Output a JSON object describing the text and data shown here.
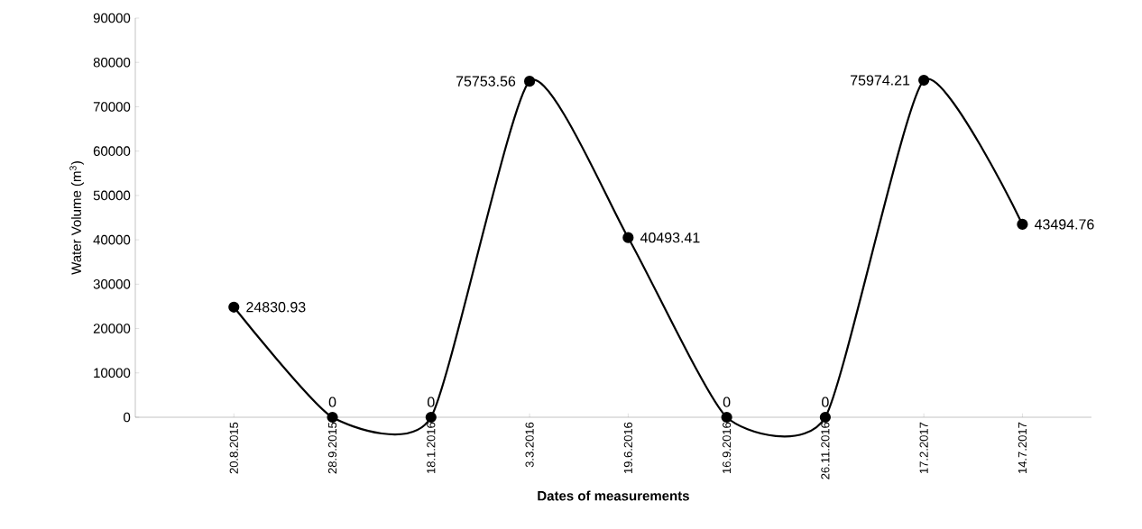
{
  "chart_data": {
    "type": "line",
    "xlabel": "Dates of measurements",
    "ylabel": "Water Volume (m$^{3}$)",
    "categories": [
      "20.8.2015",
      "28.9.2015",
      "18.1.2016",
      "3.3.2016",
      "19.6.2016",
      "16.9.2016",
      "26.11.2016",
      "17.2.2017",
      "14.7.2017"
    ],
    "series": [
      {
        "color": "#000000",
        "values": [
          24830.93,
          0,
          0,
          75753.56,
          40493.41,
          0,
          0,
          75974.21,
          43494.76
        ],
        "value_labels": [
          "24830.93",
          "0",
          "0",
          "75753.56",
          "40493.41",
          "0",
          "0",
          "75974.21",
          "43494.76"
        ]
      }
    ],
    "ylim": [
      0,
      90000
    ],
    "yticks": [
      0,
      10000,
      20000,
      30000,
      40000,
      50000,
      60000,
      70000,
      80000,
      90000
    ],
    "marker": "circle",
    "line_style": "solid"
  }
}
